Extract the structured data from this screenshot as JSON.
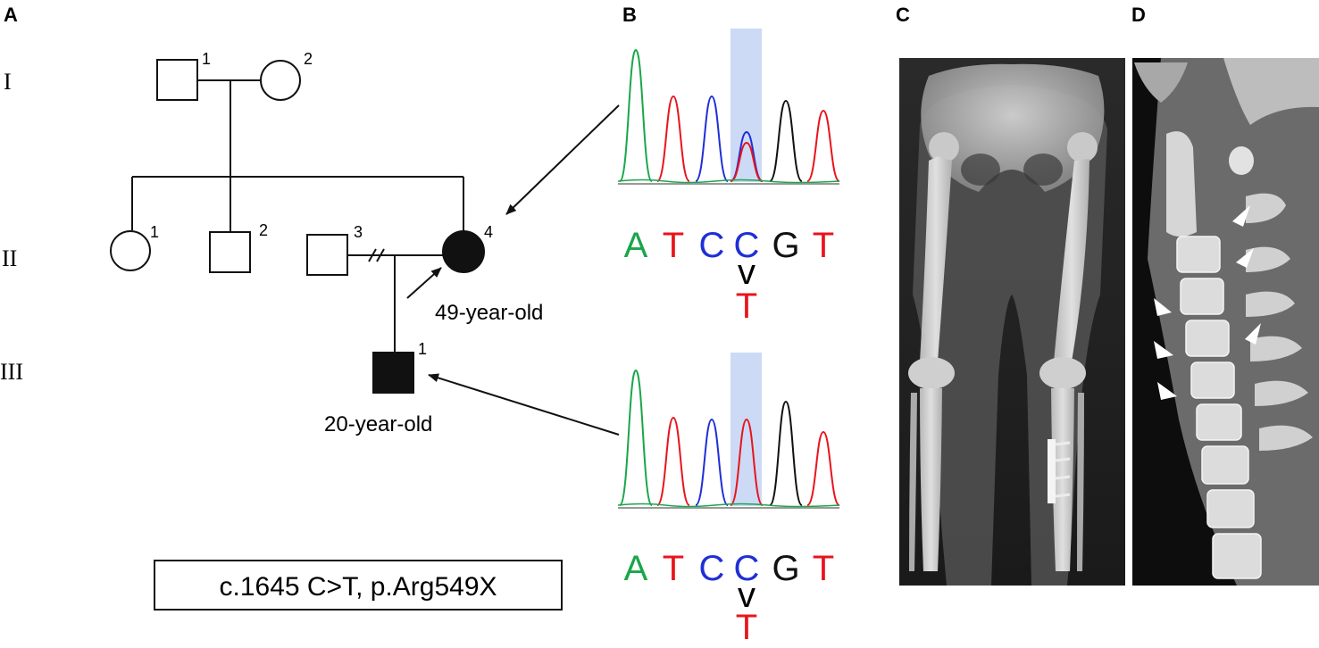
{
  "panels": {
    "A": "A",
    "B": "B",
    "C": "C",
    "D": "D"
  },
  "pedigree": {
    "generations": [
      "I",
      "II",
      "III"
    ],
    "individuals": {
      "I1": "1",
      "I2": "2",
      "II1": "1",
      "II2": "2",
      "II3": "3",
      "II4": "4",
      "III1": "1"
    },
    "ages": {
      "II4": "49-year-old",
      "III1": "20-year-old"
    },
    "variant": "c.1645 C>T, p.Arg549X"
  },
  "sequencing": {
    "bases": [
      "A",
      "T",
      "C",
      "C",
      "G",
      "T"
    ],
    "base_colors": {
      "A": "#1aa64a",
      "T": "#e8141c",
      "C": "#1f2fd6",
      "G": "#111111"
    },
    "mutation_arrow": "v",
    "mutant_base": "T",
    "highlight_color": "#c6d6f5"
  },
  "images": {
    "C": "lower-limb-xray",
    "D": "cervical-spine-ct"
  }
}
